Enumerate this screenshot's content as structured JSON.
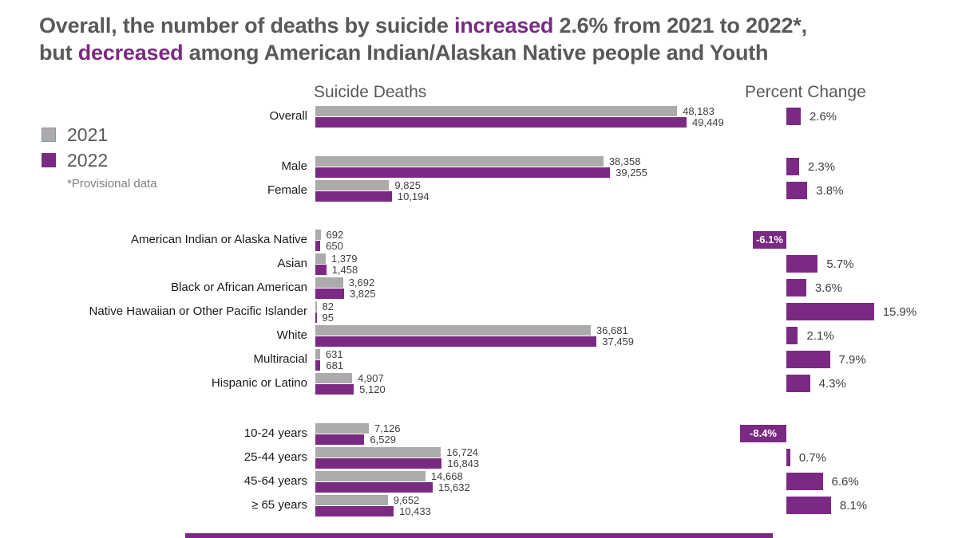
{
  "title": {
    "l1a": "Overall, the number of deaths by suicide ",
    "l1b": "increased",
    "l1c": " 2.6% from 2021 to 2022*,",
    "l2a": "but ",
    "l2b": "decreased",
    "l2c": " among American Indian/Alaskan Native people and Youth"
  },
  "legend": {
    "y2021": "2021",
    "y2022": "2022",
    "note": "*Provisional data"
  },
  "headers": {
    "left": "Suicide Deaths",
    "right": "Percent Change"
  },
  "colors": {
    "purple": "#7A2A83",
    "gray": "#ADAAAB",
    "title_text": "#595959",
    "category_text": "#1A1A1A",
    "value_text": "#404040",
    "note_text": "#7F7F7F",
    "negative_label_text": "#FFFFFF"
  },
  "chart_data": {
    "type": "bar",
    "orientation": "horizontal",
    "title": "Suicide Deaths",
    "secondary_title": "Percent Change",
    "series": [
      "2021",
      "2022"
    ],
    "note": "*Provisional data",
    "value_axis_max": 49449,
    "groups": [
      {
        "name": "overall",
        "rows": [
          {
            "label": "Overall",
            "v2021": 48183,
            "v2022": 49449,
            "d2021": "48,183",
            "d2022": "49,449",
            "pct": 2.6,
            "pct_label": "2.6%"
          }
        ]
      },
      {
        "name": "sex",
        "rows": [
          {
            "label": "Male",
            "v2021": 38358,
            "v2022": 39255,
            "d2021": "38,358",
            "d2022": "39,255",
            "pct": 2.3,
            "pct_label": "2.3%"
          },
          {
            "label": "Female",
            "v2021": 9825,
            "v2022": 10194,
            "d2021": "9,825",
            "d2022": "10,194",
            "pct": 3.8,
            "pct_label": "3.8%"
          }
        ]
      },
      {
        "name": "race-ethnicity",
        "rows": [
          {
            "label": "American Indian or Alaska Native",
            "v2021": 692,
            "v2022": 650,
            "d2021": "692",
            "d2022": "650",
            "pct": -6.1,
            "pct_label": "-6.1%"
          },
          {
            "label": "Asian",
            "v2021": 1379,
            "v2022": 1458,
            "d2021": "1,379",
            "d2022": "1,458",
            "pct": 5.7,
            "pct_label": "5.7%"
          },
          {
            "label": "Black or African American",
            "v2021": 3692,
            "v2022": 3825,
            "d2021": "3,692",
            "d2022": "3,825",
            "pct": 3.6,
            "pct_label": "3.6%"
          },
          {
            "label": "Native Hawaiian or Other Pacific Islander",
            "v2021": 82,
            "v2022": 95,
            "d2021": "82",
            "d2022": "95",
            "pct": 15.9,
            "pct_label": "15.9%"
          },
          {
            "label": "White",
            "v2021": 36681,
            "v2022": 37459,
            "d2021": "36,681",
            "d2022": "37,459",
            "pct": 2.1,
            "pct_label": "2.1%"
          },
          {
            "label": "Multiracial",
            "v2021": 631,
            "v2022": 681,
            "d2021": "631",
            "d2022": "681",
            "pct": 7.9,
            "pct_label": "7.9%"
          },
          {
            "label": "Hispanic or Latino",
            "v2021": 4907,
            "v2022": 5120,
            "d2021": "4,907",
            "d2022": "5,120",
            "pct": 4.3,
            "pct_label": "4.3%"
          }
        ]
      },
      {
        "name": "age",
        "rows": [
          {
            "label": "10-24 years",
            "v2021": 7126,
            "v2022": 6529,
            "d2021": "7,126",
            "d2022": "6,529",
            "pct": -8.4,
            "pct_label": "-8.4%"
          },
          {
            "label": "25-44 years",
            "v2021": 16724,
            "v2022": 16843,
            "d2021": "16,724",
            "d2022": "16,843",
            "pct": 0.7,
            "pct_label": "0.7%"
          },
          {
            "label": "45-64 years",
            "v2021": 14668,
            "v2022": 15632,
            "d2021": "14,668",
            "d2022": "15,632",
            "pct": 6.6,
            "pct_label": "6.6%"
          },
          {
            "label": "≥ 65 years",
            "v2021": 9652,
            "v2022": 10433,
            "d2021": "9,652",
            "d2022": "10,433",
            "pct": 8.1,
            "pct_label": "8.1%"
          }
        ]
      }
    ]
  }
}
